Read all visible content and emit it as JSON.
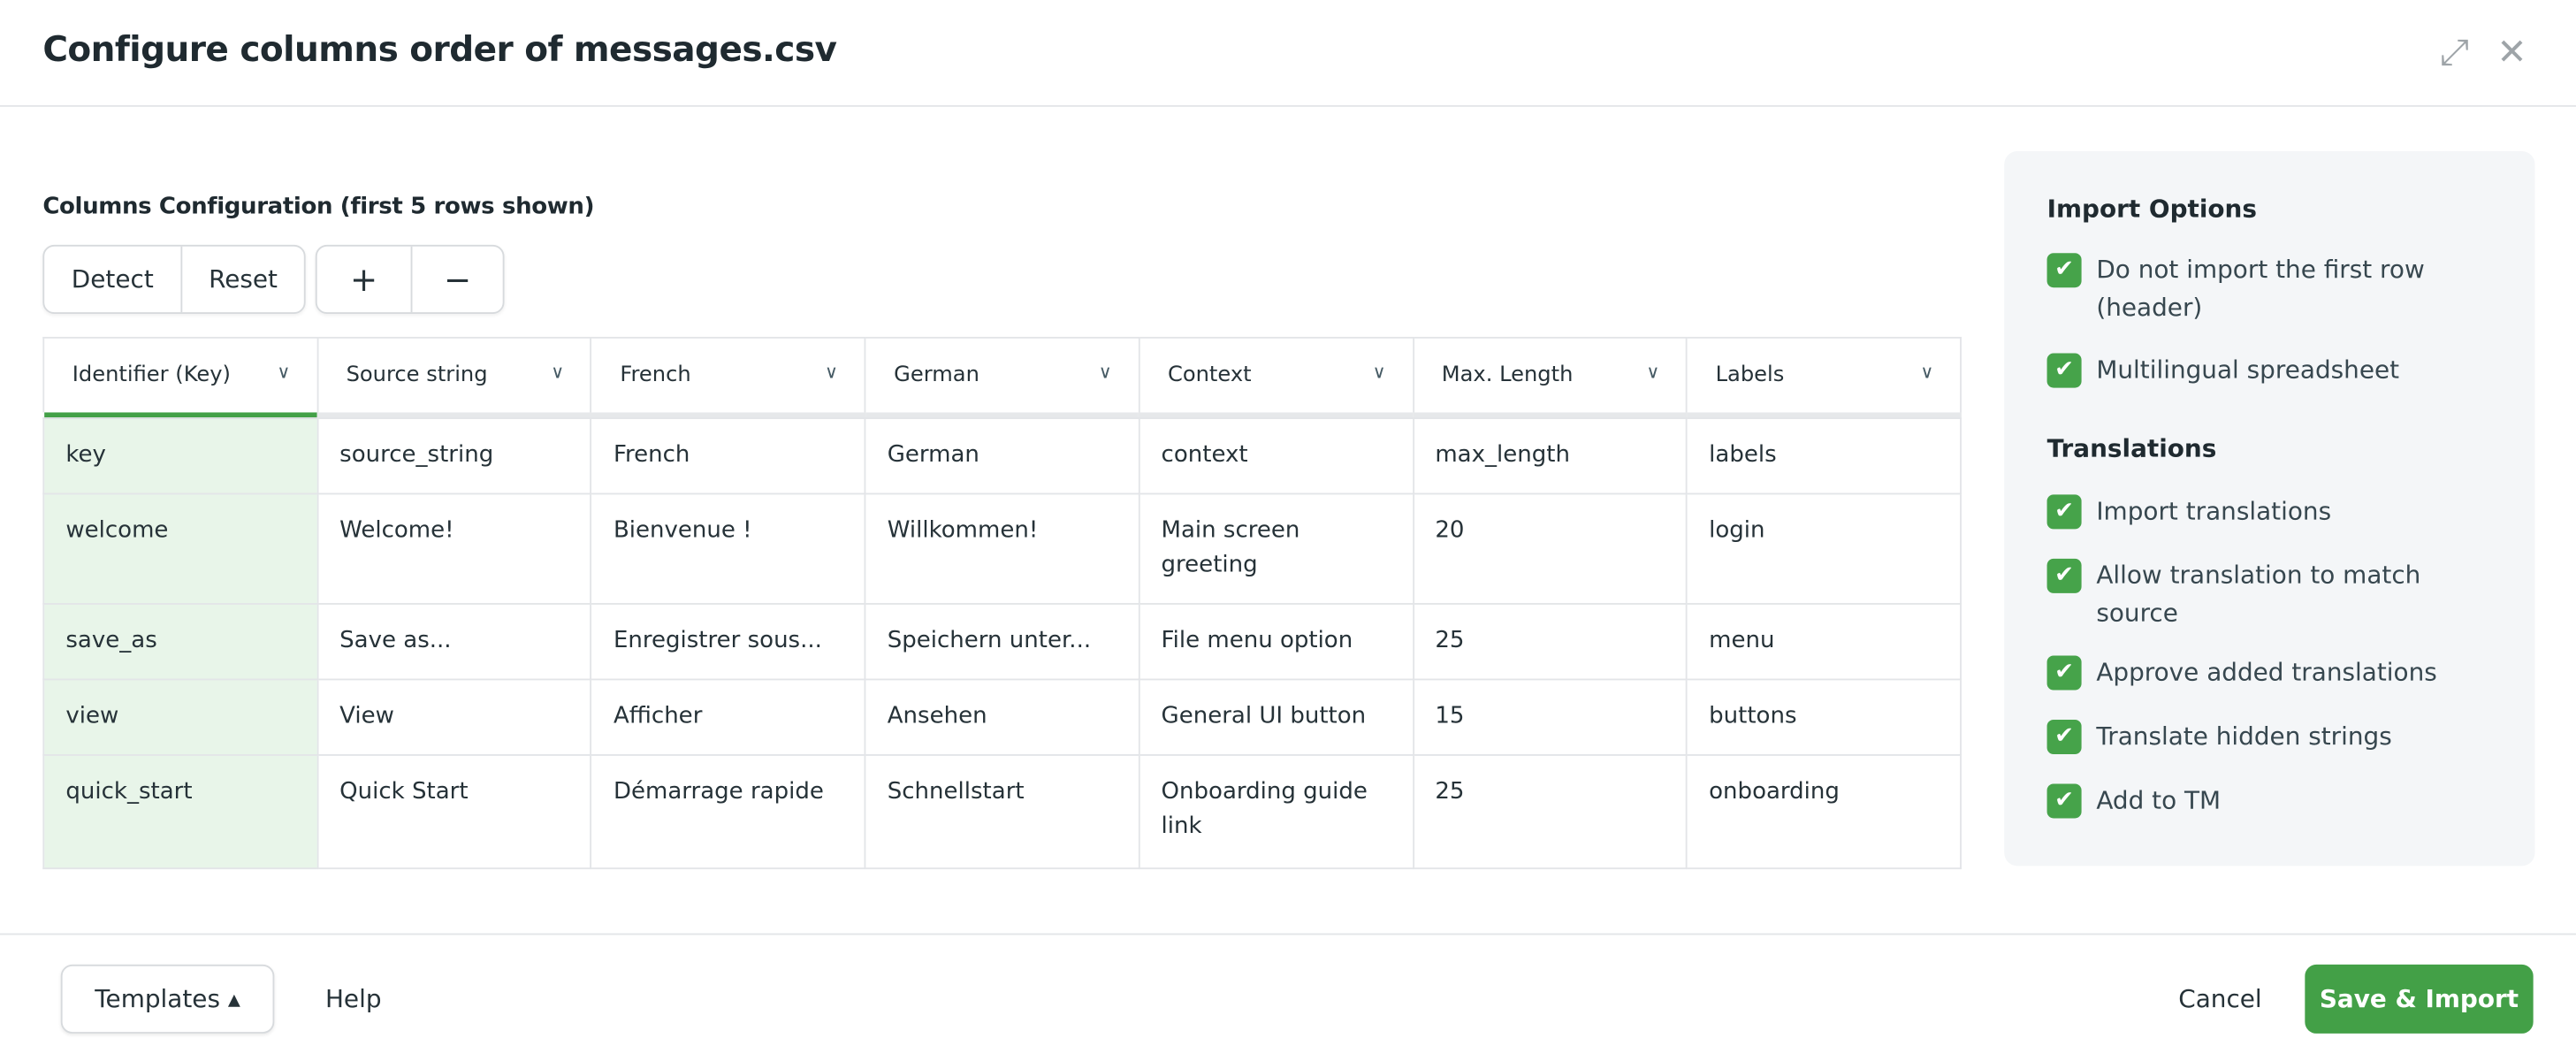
{
  "dialog": {
    "title": "Configure columns order of messages.csv",
    "expand_icon": "expand-icon",
    "close_icon": "close-icon"
  },
  "columns_config": {
    "label": "Columns Configuration (first 5 rows shown)",
    "detect": "Detect",
    "reset": "Reset",
    "add": "+",
    "remove": "−",
    "headers": [
      "Identifier (Key)",
      "Source string",
      "French",
      "German",
      "Context",
      "Max. Length",
      "Labels"
    ],
    "rows": [
      [
        "key",
        "source_string",
        "French",
        "German",
        "context",
        "max_length",
        "labels"
      ],
      [
        "welcome",
        "Welcome!",
        "Bienvenue !",
        "Willkommen!",
        "Main screen greeting",
        "20",
        "login"
      ],
      [
        "save_as",
        "Save as...",
        "Enregistrer sous...",
        "Speichern unter...",
        "File menu option",
        "25",
        "menu"
      ],
      [
        "view",
        "View",
        "Afficher",
        "Ansehen",
        "General UI button",
        "15",
        "buttons"
      ],
      [
        "quick_start",
        "Quick Start",
        "Démarrage rapide",
        "Schnellstart",
        "Onboarding guide link",
        "25",
        "onboarding"
      ]
    ]
  },
  "import_options": {
    "title": "Import Options",
    "items": [
      {
        "label": "Do not import the first row (header)",
        "checked": true
      },
      {
        "label": "Multilingual spreadsheet",
        "checked": true
      }
    ]
  },
  "translations": {
    "title": "Translations",
    "items": [
      {
        "label": "Import translations",
        "checked": true
      },
      {
        "label": "Allow translation to match source",
        "checked": true
      },
      {
        "label": "Approve added translations",
        "checked": true
      },
      {
        "label": "Translate hidden strings",
        "checked": true
      },
      {
        "label": "Add to TM",
        "checked": true
      }
    ]
  },
  "footer": {
    "templates": "Templates ▴",
    "help": "Help",
    "cancel": "Cancel",
    "save": "Save & Import"
  },
  "colors": {
    "accent": "#43a047",
    "key_column_bg": "#e8f5e9"
  }
}
